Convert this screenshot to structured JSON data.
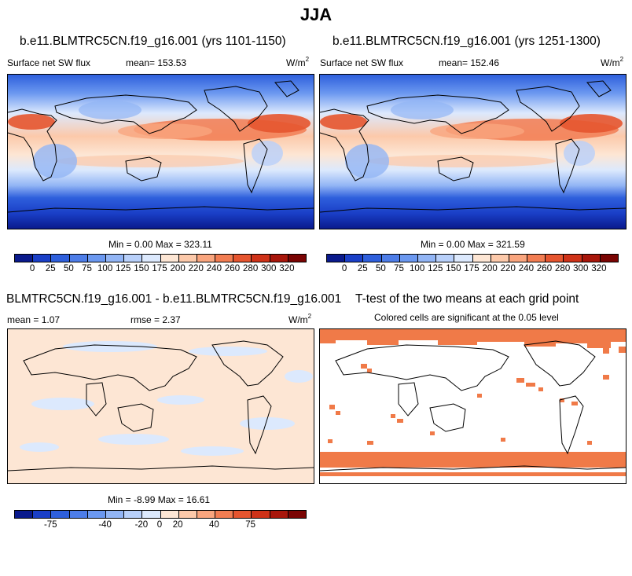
{
  "title": "JJA",
  "panels": {
    "top_left": {
      "title": "b.e11.BLMTRC5CN.f19_g16.001 (yrs 1101-1150)",
      "variable": "Surface net SW flux",
      "mean_label": "mean= 153.53",
      "units": "W/m",
      "units_sup": "2",
      "minmax": "Min =   0.00 Max = 323.11"
    },
    "top_right": {
      "title": "b.e11.BLMTRC5CN.f19_g16.001 (yrs 1251-1300)",
      "variable": "Surface net SW flux",
      "mean_label": "mean= 152.46",
      "units": "W/m",
      "units_sup": "2",
      "minmax": "Min =   0.00 Max = 321.59"
    },
    "bottom_left": {
      "title": "BLMTRC5CN.f19_g16.001 - b.e11.BLMTRC5CN.f19_g16.001",
      "mean_label": "mean =   1.07",
      "rmse_label": "rmse =   2.37",
      "units": "W/m",
      "units_sup": "2",
      "minmax": "Min =  -8.99 Max =  16.61"
    },
    "bottom_right": {
      "title": "T-test of the two means at each grid point",
      "subtitle": "Colored cells are significant at the 0.05 level"
    }
  },
  "colorbar_abs": {
    "colors": [
      "#0a1a8c",
      "#1a3fc7",
      "#2e5fdc",
      "#4d7de8",
      "#6b98f0",
      "#92b5f5",
      "#b8d0fa",
      "#dce9fd",
      "#fde6d4",
      "#fcc9aa",
      "#f9a57e",
      "#f27d52",
      "#e6552f",
      "#cf3218",
      "#a8160b",
      "#7a0403"
    ],
    "ticks": [
      "0",
      "25",
      "50",
      "75",
      "100",
      "125",
      "150",
      "175",
      "200",
      "220",
      "240",
      "260",
      "280",
      "300",
      "320"
    ]
  },
  "colorbar_diff": {
    "colors": [
      "#0a1a8c",
      "#1a3fc7",
      "#2e5fdc",
      "#4d7de8",
      "#6b98f0",
      "#92b5f5",
      "#b8d0fa",
      "#dce9fd",
      "#fde6d4",
      "#fcc9aa",
      "#f9a57e",
      "#f27d52",
      "#e6552f",
      "#cf3218",
      "#a8160b",
      "#7a0403"
    ],
    "ticks": [
      "-75",
      "-40",
      "-20",
      "0",
      "20",
      "40",
      "75"
    ]
  },
  "ttest_color": "#f07a48"
}
